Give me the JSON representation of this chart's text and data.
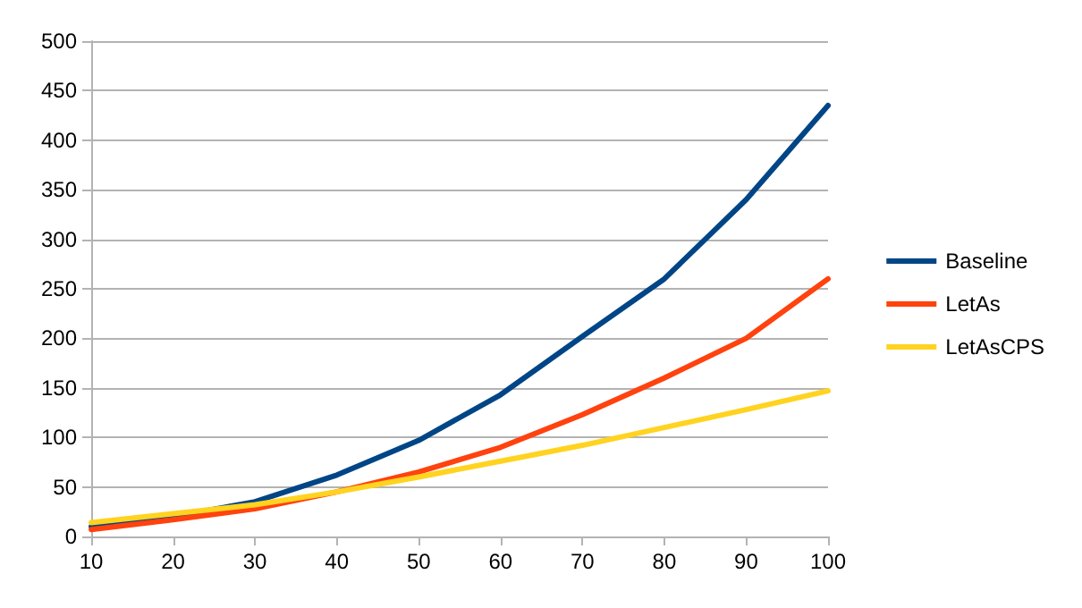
{
  "chart_data": {
    "type": "line",
    "x": [
      10,
      20,
      30,
      40,
      50,
      60,
      70,
      80,
      90,
      100
    ],
    "series": [
      {
        "name": "Baseline",
        "color": "#004586",
        "values": [
          10,
          20,
          35,
          62,
          97,
          143,
          202,
          260,
          340,
          435
        ]
      },
      {
        "name": "LetAs",
        "color": "#ff420e",
        "values": [
          7,
          17,
          28,
          45,
          65,
          90,
          123,
          160,
          200,
          260
        ]
      },
      {
        "name": "LetAsCPS",
        "color": "#ffd320",
        "values": [
          14,
          23,
          32,
          45,
          60,
          76,
          92,
          110,
          128,
          147
        ]
      }
    ],
    "xlim": [
      10,
      100
    ],
    "xticks": [
      10,
      20,
      30,
      40,
      50,
      60,
      70,
      80,
      90,
      100
    ],
    "ylim": [
      0,
      500
    ],
    "yticks": [
      0,
      50,
      100,
      150,
      200,
      250,
      300,
      350,
      400,
      450,
      500
    ],
    "grid": "y",
    "legend": "right",
    "marker": "none",
    "line_style": "solid"
  }
}
